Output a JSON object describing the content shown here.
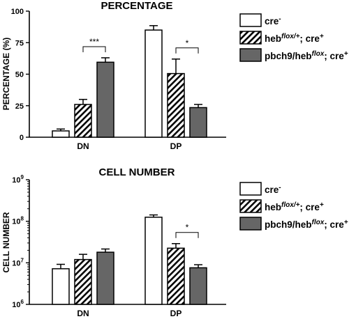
{
  "chart_data": [
    {
      "type": "bar",
      "title": "PERCENTAGE",
      "ylabel": "PERCENTAGE (%)",
      "xlabel": "",
      "scale": "linear",
      "ylim": [
        0,
        100
      ],
      "yticks": [
        "0",
        "25",
        "50",
        "75",
        "100"
      ],
      "categories": [
        "DN",
        "DP"
      ],
      "series": [
        {
          "name": "cre",
          "name_sup": "-",
          "values": [
            5,
            85
          ],
          "errors": [
            1.5,
            3.5
          ],
          "fill": "#ffffff"
        },
        {
          "name": "heb",
          "name_italic": "flox/+",
          "name_tail": "; cre",
          "name_sup": "+",
          "values": [
            26,
            50.5
          ],
          "errors": [
            4,
            11.5
          ],
          "fill": "hatch"
        },
        {
          "name": "pbch9/heb",
          "name_italic": "flox",
          "name_tail": "; cre",
          "name_sup": "+",
          "values": [
            59.5,
            23.5
          ],
          "errors": [
            3.5,
            2.5
          ],
          "fill": "#666666"
        }
      ],
      "significance": [
        {
          "category": "DN",
          "from_series": 1,
          "to_series": 2,
          "label": "***"
        },
        {
          "category": "DP",
          "from_series": 1,
          "to_series": 2,
          "label": "*"
        }
      ],
      "legend_position": "right"
    },
    {
      "type": "bar",
      "title": "CELL NUMBER",
      "ylabel": "CELL NUMBER",
      "xlabel": "",
      "scale": "log",
      "ylim": [
        1000000,
        1000000000
      ],
      "yticks": [
        {
          "base": "10",
          "exp": "6"
        },
        {
          "base": "10",
          "exp": "7"
        },
        {
          "base": "10",
          "exp": "8"
        },
        {
          "base": "10",
          "exp": "9"
        }
      ],
      "categories": [
        "DN",
        "DP"
      ],
      "series": [
        {
          "name": "cre",
          "name_sup": "-",
          "values": [
            7200000,
            125000000
          ],
          "errors_high": [
            9200000,
            142000000
          ],
          "fill": "#ffffff"
        },
        {
          "name": "heb",
          "name_italic": "flox/+",
          "name_tail": "; cre",
          "name_sup": "+",
          "values": [
            12000000,
            22500000
          ],
          "errors_high": [
            16000000,
            29000000
          ],
          "fill": "hatch"
        },
        {
          "name": "pbch9/heb",
          "name_italic": "flox",
          "name_tail": "; cre",
          "name_sup": "+",
          "values": [
            18000000,
            7600000
          ],
          "errors_high": [
            21500000,
            9000000
          ],
          "fill": "#666666"
        }
      ],
      "significance": [
        {
          "category": "DP",
          "from_series": 1,
          "to_series": 2,
          "label": "*"
        }
      ],
      "legend_position": "right"
    }
  ]
}
